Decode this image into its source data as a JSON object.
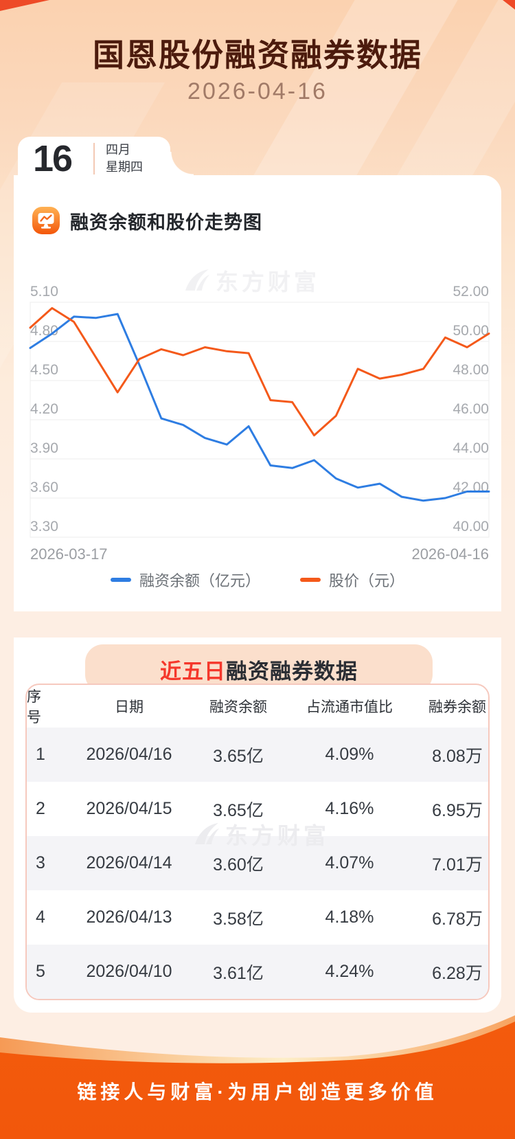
{
  "page": {
    "title": "国恩股份融资融券数据",
    "date": "2026-04-16",
    "footer": "链接人与财富·为用户创造更多价值",
    "watermark": "东方财富"
  },
  "calendar": {
    "day": "16",
    "month": "四月",
    "weekday": "星期四"
  },
  "chart_section": {
    "heading": "融资余额和股价走势图"
  },
  "chart_data": {
    "type": "line",
    "x_start_label": "2026-03-17",
    "x_end_label": "2026-04-16",
    "grid": true,
    "legend_position": "bottom",
    "left_axis": {
      "tick_labels": [
        "5.10",
        "4.80",
        "4.50",
        "4.20",
        "3.90",
        "3.60",
        "3.30"
      ],
      "range": [
        3.3,
        5.1
      ]
    },
    "right_axis": {
      "tick_labels": [
        "52.00",
        "50.00",
        "48.00",
        "46.00",
        "44.00",
        "42.00",
        "40.00"
      ],
      "range": [
        40.0,
        52.0
      ]
    },
    "series": [
      {
        "name": "融资余额（亿元）",
        "axis": "left",
        "color": "#2e7de2",
        "values": [
          4.75,
          4.86,
          4.99,
          4.98,
          5.01,
          4.62,
          4.21,
          4.16,
          4.06,
          4.01,
          4.15,
          3.85,
          3.83,
          3.89,
          3.75,
          3.68,
          3.71,
          3.61,
          3.58,
          3.6,
          3.65,
          3.65
        ]
      },
      {
        "name": "股价（元）",
        "axis": "right",
        "color": "#f4591a",
        "values": [
          50.7,
          51.7,
          51.0,
          49.2,
          47.4,
          49.1,
          49.6,
          49.3,
          49.7,
          49.5,
          49.4,
          47.0,
          46.9,
          45.2,
          46.2,
          48.6,
          48.1,
          48.3,
          48.6,
          50.2,
          49.7,
          50.4
        ]
      }
    ]
  },
  "table_section": {
    "title_highlight": "近五日",
    "title_rest": "融资融券数据",
    "columns": [
      "序号",
      "日期",
      "融资余额",
      "占流通市值比",
      "融券余额"
    ],
    "rows": [
      [
        "1",
        "2026/04/16",
        "3.65亿",
        "4.09%",
        "8.08万"
      ],
      [
        "2",
        "2026/04/15",
        "3.65亿",
        "4.16%",
        "6.95万"
      ],
      [
        "3",
        "2026/04/14",
        "3.60亿",
        "4.07%",
        "7.01万"
      ],
      [
        "4",
        "2026/04/13",
        "3.58亿",
        "4.18%",
        "6.78万"
      ],
      [
        "5",
        "2026/04/10",
        "3.61亿",
        "4.24%",
        "6.28万"
      ]
    ]
  },
  "colors": {
    "margin_line": "#2e7de2",
    "price_line": "#f4591a",
    "footer_orange": "#f2570b",
    "accent_red": "#ee4a27",
    "banner_bg": "#fbdfcc",
    "title_dark": "#4c1b0d"
  }
}
